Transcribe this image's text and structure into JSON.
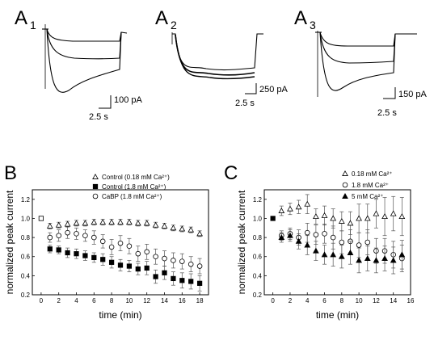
{
  "panels_a": [
    {
      "letter": "A",
      "sub": "1",
      "scale_y": "100 pA",
      "scale_x": "2.5 s"
    },
    {
      "letter": "A",
      "sub": "2",
      "scale_y": "250 pA",
      "scale_x": "2.5 s"
    },
    {
      "letter": "A",
      "sub": "3",
      "scale_y": "150 pA",
      "scale_x": "2.5 s"
    }
  ],
  "chart_data": [
    {
      "panel": "B",
      "type": "scatter",
      "xlabel": "time (min)",
      "ylabel": "normalized peak current",
      "xlim": [
        -1,
        19
      ],
      "ylim": [
        0.2,
        1.3
      ],
      "xticks": [
        0,
        2,
        4,
        6,
        8,
        10,
        12,
        14,
        16,
        18
      ],
      "yticks": [
        0.2,
        0.4,
        0.6,
        0.8,
        1.0,
        1.2
      ],
      "ytick_labels": [
        "0.2",
        "0.4",
        "0.6",
        "0.8",
        "1.0",
        "1.2"
      ],
      "legend_position": "top-right",
      "series": [
        {
          "name": "Control (0.18 mM Ca²⁺)",
          "marker": "triangle-open",
          "x": [
            1,
            2,
            3,
            4,
            5,
            6,
            7,
            8,
            9,
            10,
            11,
            12,
            13,
            14,
            15,
            16,
            17,
            18
          ],
          "y": [
            0.92,
            0.93,
            0.94,
            0.95,
            0.95,
            0.96,
            0.96,
            0.96,
            0.96,
            0.96,
            0.95,
            0.95,
            0.93,
            0.92,
            0.9,
            0.89,
            0.88,
            0.84
          ],
          "err": [
            0.03,
            0.03,
            0.03,
            0.03,
            0.03,
            0.03,
            0.03,
            0.03,
            0.03,
            0.03,
            0.03,
            0.03,
            0.03,
            0.03,
            0.03,
            0.03,
            0.03,
            0.03
          ]
        },
        {
          "name": "Control (1.8 mM Ca²⁺)",
          "marker": "square-filled",
          "x": [
            1,
            2,
            3,
            4,
            5,
            6,
            7,
            8,
            9,
            10,
            11,
            12,
            13,
            14,
            15,
            16,
            17,
            18
          ],
          "y": [
            0.68,
            0.67,
            0.64,
            0.63,
            0.61,
            0.59,
            0.57,
            0.54,
            0.51,
            0.5,
            0.47,
            0.48,
            0.39,
            0.43,
            0.37,
            0.35,
            0.34,
            0.32
          ],
          "err": [
            0.04,
            0.04,
            0.05,
            0.05,
            0.05,
            0.05,
            0.06,
            0.06,
            0.06,
            0.06,
            0.06,
            0.07,
            0.07,
            0.07,
            0.07,
            0.08,
            0.08,
            0.08
          ]
        },
        {
          "name": "CaBP   (1.8 mM Ca²⁺)",
          "marker": "circle-open",
          "x": [
            1,
            2,
            3,
            4,
            5,
            6,
            7,
            8,
            9,
            10,
            11,
            12,
            13,
            14,
            15,
            16,
            17,
            18
          ],
          "y": [
            0.8,
            0.82,
            0.85,
            0.84,
            0.82,
            0.8,
            0.76,
            0.7,
            0.74,
            0.71,
            0.63,
            0.65,
            0.6,
            0.58,
            0.56,
            0.55,
            0.52,
            0.5
          ],
          "err": [
            0.05,
            0.06,
            0.06,
            0.06,
            0.06,
            0.07,
            0.07,
            0.08,
            0.08,
            0.08,
            0.08,
            0.08,
            0.08,
            0.08,
            0.08,
            0.08,
            0.08,
            0.08
          ]
        },
        {
          "name": "",
          "marker": "square-open",
          "x": [
            0
          ],
          "y": [
            1.0
          ],
          "err": [
            0
          ]
        }
      ]
    },
    {
      "panel": "C",
      "type": "scatter",
      "xlabel": "time (min)",
      "ylabel": "normalized peak current",
      "xlim": [
        -1,
        16
      ],
      "ylim": [
        0.2,
        1.3
      ],
      "xticks": [
        0,
        2,
        4,
        6,
        8,
        10,
        12,
        14,
        16
      ],
      "yticks": [
        0.2,
        0.4,
        0.6,
        0.8,
        1.0,
        1.2
      ],
      "ytick_labels": [
        "0.2",
        "0.4",
        "0.6",
        "0.8",
        "1.0",
        "1.2"
      ],
      "legend_position": "top-right",
      "series": [
        {
          "name": "0.18 mM Ca²⁺",
          "marker": "triangle-open",
          "x": [
            1,
            2,
            3,
            4,
            5,
            6,
            7,
            8,
            9,
            10,
            11,
            12,
            13,
            14,
            15
          ],
          "y": [
            1.08,
            1.1,
            1.12,
            1.15,
            1.02,
            1.03,
            1.0,
            0.97,
            0.95,
            1.0,
            1.0,
            1.05,
            1.02,
            1.05,
            1.02
          ],
          "err": [
            0.05,
            0.06,
            0.07,
            0.1,
            0.08,
            0.1,
            0.1,
            0.1,
            0.12,
            0.15,
            0.15,
            0.15,
            0.2,
            0.18,
            0.2
          ]
        },
        {
          "name": "1.8 mM Ca²⁺",
          "marker": "circle-open",
          "x": [
            1,
            2,
            3,
            4,
            5,
            6,
            7,
            8,
            9,
            10,
            11,
            12,
            13,
            14,
            15
          ],
          "y": [
            0.82,
            0.84,
            0.8,
            0.85,
            0.83,
            0.84,
            0.8,
            0.75,
            0.76,
            0.72,
            0.75,
            0.66,
            0.66,
            0.62,
            0.58
          ],
          "err": [
            0.05,
            0.06,
            0.08,
            0.1,
            0.1,
            0.1,
            0.12,
            0.12,
            0.12,
            0.13,
            0.13,
            0.13,
            0.13,
            0.14,
            0.14
          ]
        },
        {
          "name": "5 mM Ca²⁺",
          "marker": "triangle-filled",
          "x": [
            1,
            2,
            3,
            4,
            5,
            6,
            7,
            8,
            9,
            10,
            11,
            12,
            13,
            14,
            15
          ],
          "y": [
            0.8,
            0.82,
            0.76,
            0.72,
            0.66,
            0.62,
            0.62,
            0.6,
            0.64,
            0.56,
            0.58,
            0.56,
            0.58,
            0.56,
            0.62
          ],
          "err": [
            0.05,
            0.06,
            0.08,
            0.1,
            0.1,
            0.1,
            0.12,
            0.12,
            0.12,
            0.13,
            0.13,
            0.13,
            0.13,
            0.14,
            0.15
          ]
        },
        {
          "name": "",
          "marker": "square-filled",
          "x": [
            0
          ],
          "y": [
            1.0
          ],
          "err": [
            0
          ]
        }
      ]
    }
  ]
}
